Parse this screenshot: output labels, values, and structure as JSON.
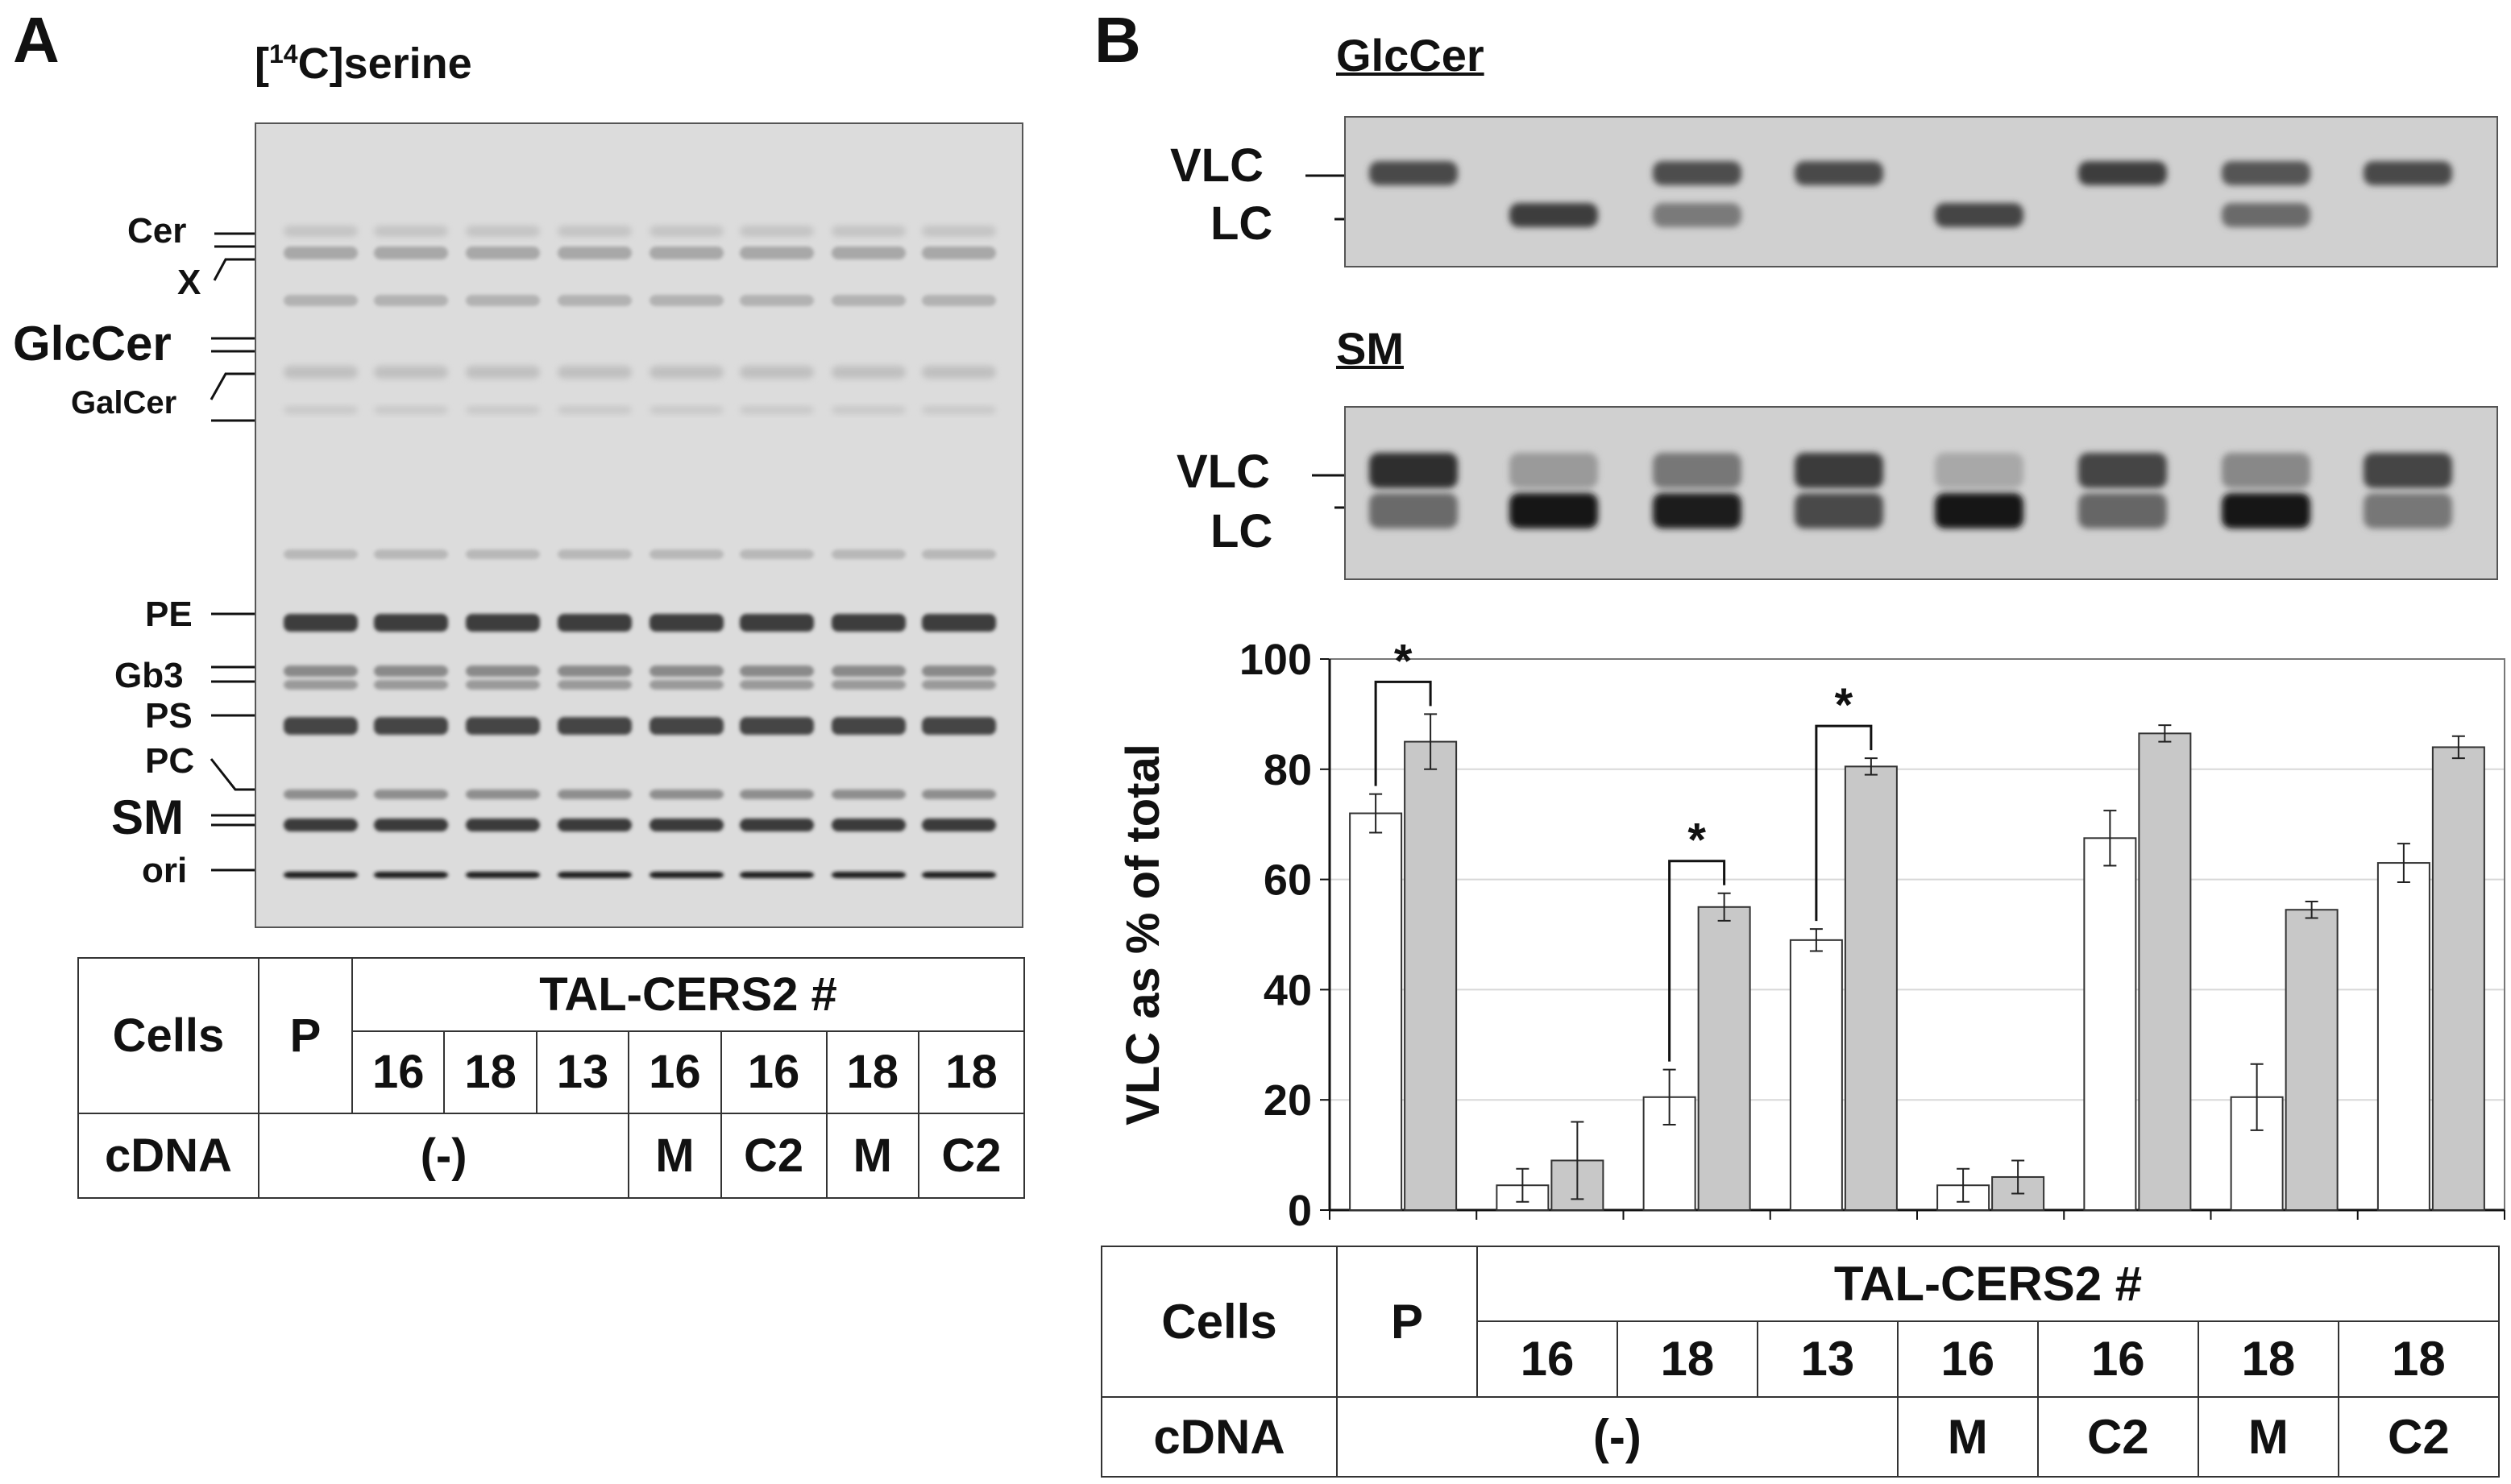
{
  "panel_a": {
    "letter": "A",
    "title_bracket_open": "[",
    "title_superscript": "14",
    "title_rest": "C]serine",
    "lane_labels": [
      "Cer",
      "X",
      "GlcCer",
      "GalCer",
      "PE",
      "Gb3",
      "PS",
      "PC",
      "SM",
      "ori"
    ]
  },
  "panel_b": {
    "letter": "B",
    "glccer_title": "GlcCer",
    "sm_title": "SM",
    "vlc_label": "VLC",
    "lc_label": "LC"
  },
  "cell_table": {
    "cells_label": "Cells",
    "cdna_label": "cDNA",
    "parental": "P",
    "group_label": "TAL-CERS2 #",
    "clones": [
      "16",
      "18",
      "13",
      "16",
      "16",
      "18",
      "18"
    ],
    "cdna_none": "(-)",
    "cdna_values": [
      "M",
      "C2",
      "M",
      "C2"
    ]
  },
  "chart_data": {
    "type": "bar",
    "ylabel": "VLC as % of total",
    "xlabel": "",
    "ylim": [
      0,
      100
    ],
    "yticks": [
      "0",
      "20",
      "40",
      "60",
      "80",
      "100"
    ],
    "grid": true,
    "categories": [
      "P",
      "16 (-)",
      "18 (-)",
      "13 (-)",
      "16 M",
      "16 C2",
      "18 M",
      "18 C2"
    ],
    "series": [
      {
        "color": "#ffffff",
        "values": [
          72,
          4.5,
          20.5,
          49,
          4.5,
          67.5,
          20.5,
          63
        ],
        "errors": [
          3.5,
          3,
          5,
          2,
          3,
          5,
          6,
          3.5
        ]
      },
      {
        "color": "#c8c8c8",
        "values": [
          85,
          9,
          55,
          80.5,
          6,
          86.5,
          54.5,
          84
        ],
        "errors": [
          5,
          7,
          2.5,
          1.5,
          3,
          1.5,
          1.5,
          2
        ]
      }
    ],
    "significance": [
      {
        "group": 0,
        "mark": "*"
      },
      {
        "group": 2,
        "mark": "*"
      },
      {
        "group": 3,
        "mark": "*"
      }
    ]
  }
}
